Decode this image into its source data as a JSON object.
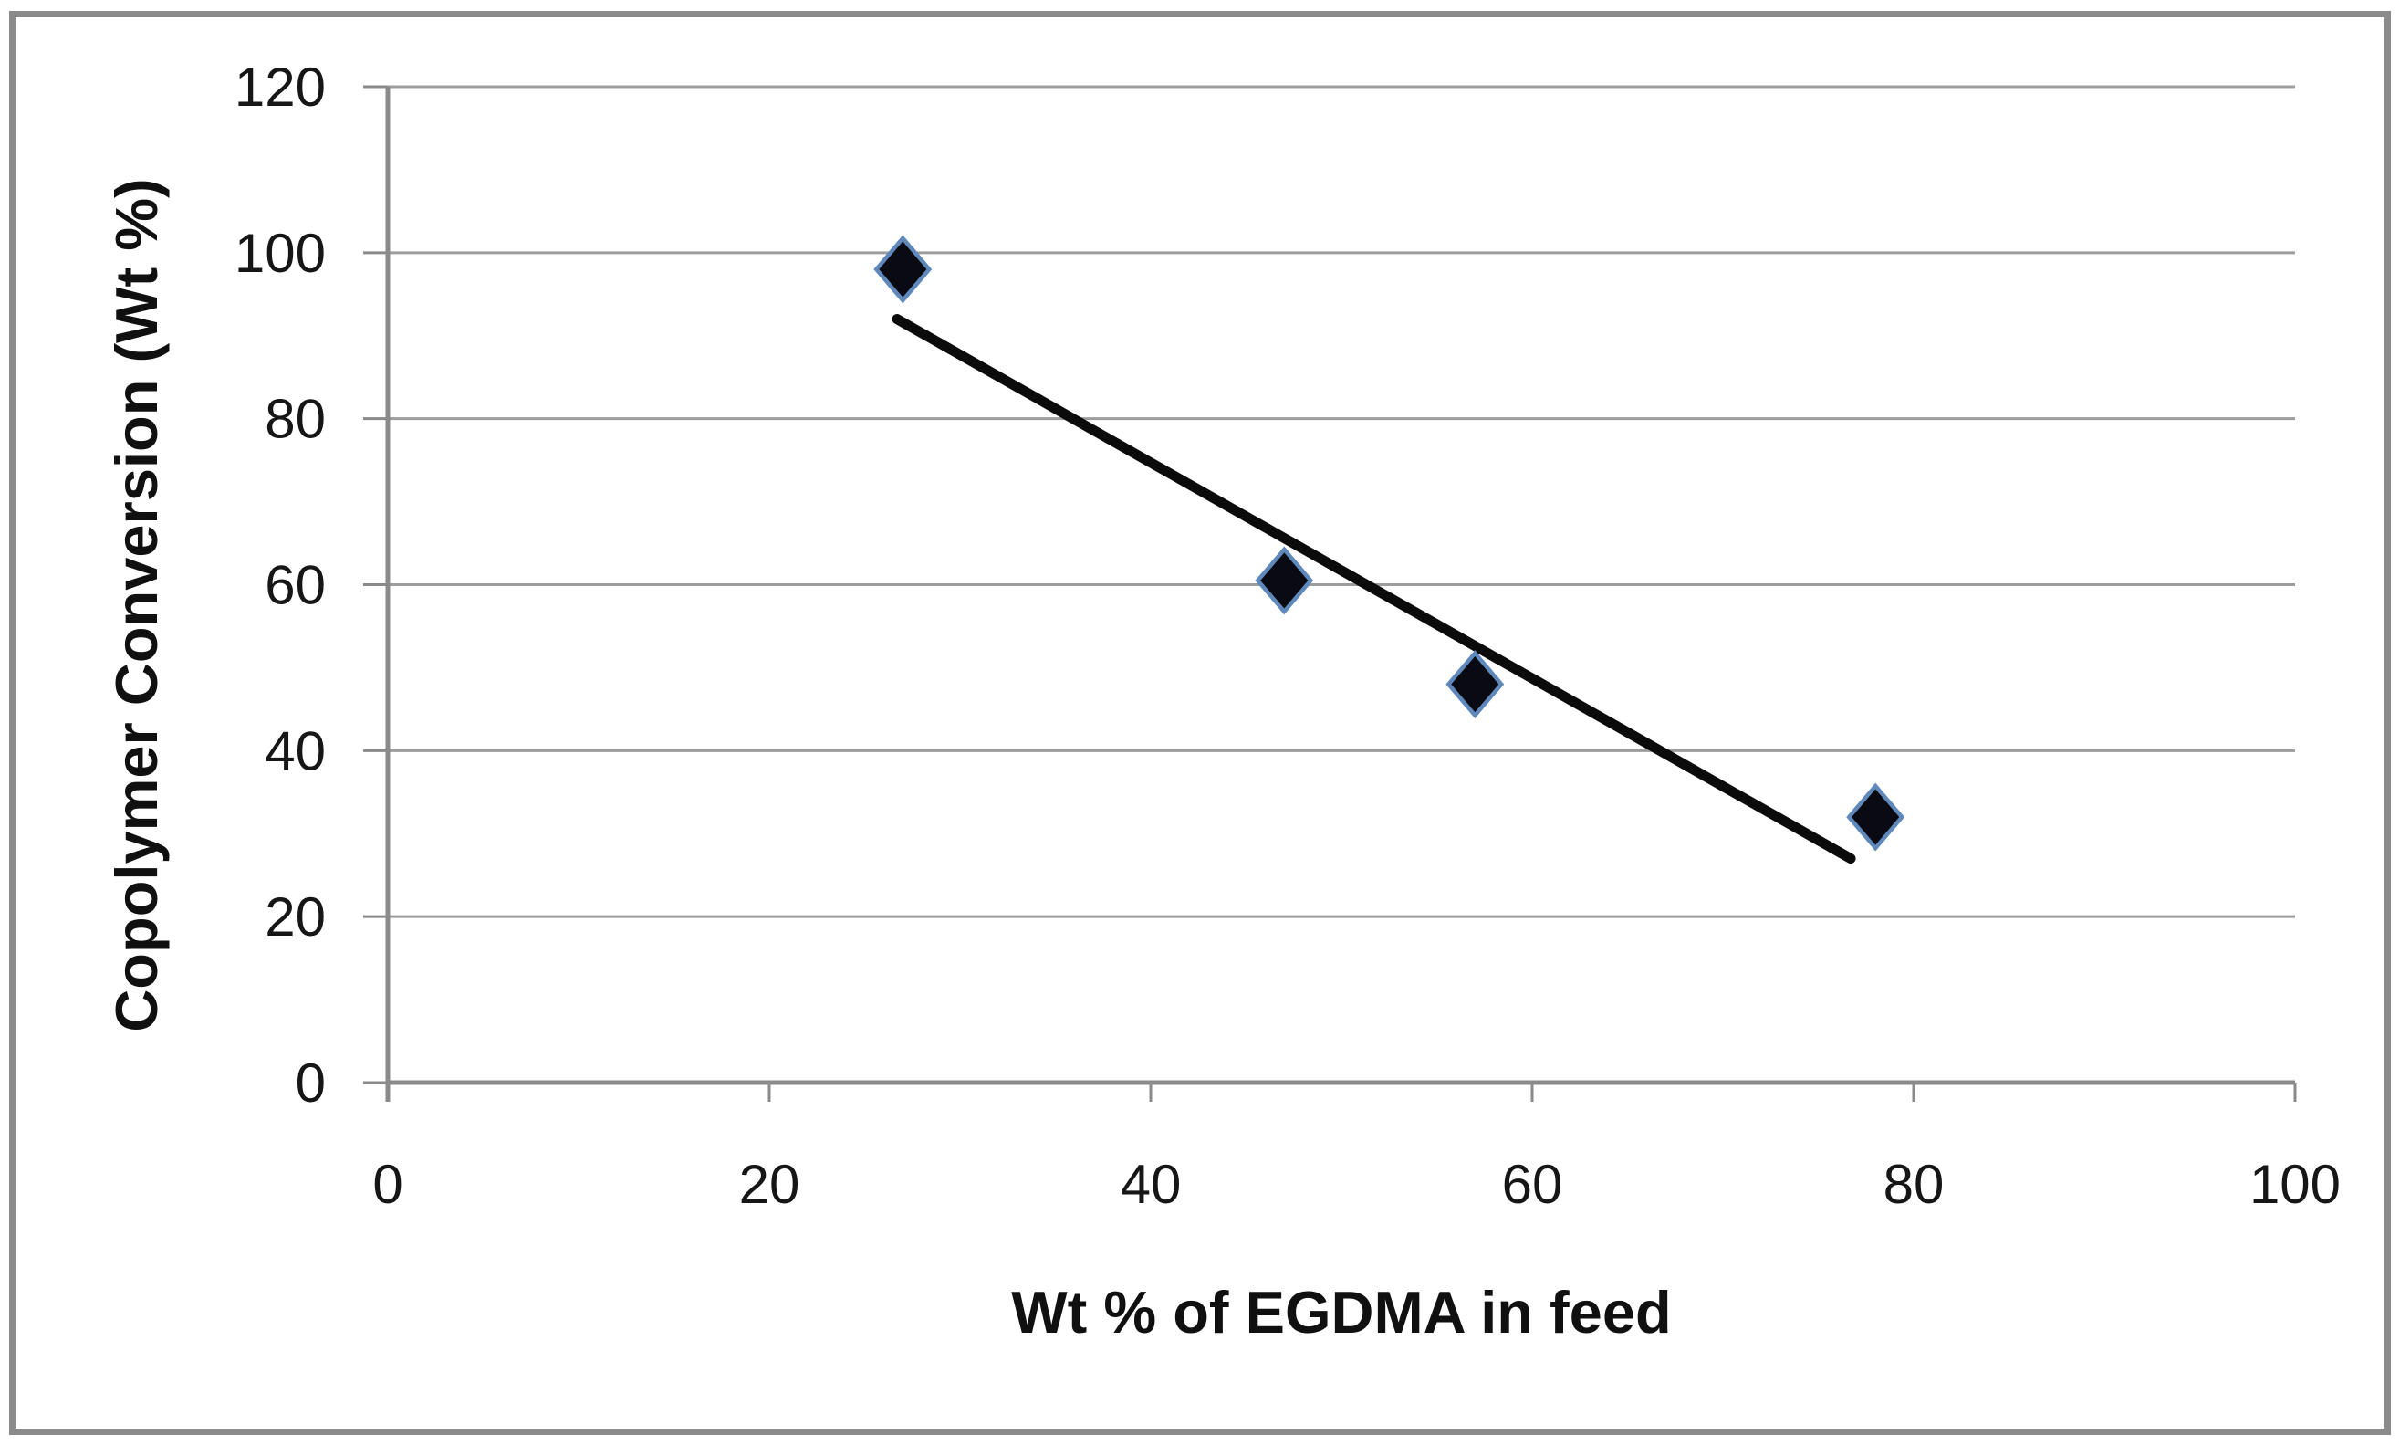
{
  "chart_data": {
    "type": "scatter",
    "title": "",
    "xlabel": "Wt % of EGDMA in feed",
    "ylabel": "Copolymer Conversion (Wt %)",
    "xlim": [
      0,
      100
    ],
    "ylim": [
      0,
      120
    ],
    "x_ticks": [
      0,
      20,
      40,
      60,
      80,
      100
    ],
    "y_ticks": [
      0,
      20,
      40,
      60,
      80,
      100,
      120
    ],
    "grid": "horizontal",
    "legend": "none",
    "series": [
      {
        "name": "copolymer-conversion-points",
        "marker": "diamond",
        "points": [
          {
            "x": 27,
            "y": 98
          },
          {
            "x": 47,
            "y": 60.5
          },
          {
            "x": 57,
            "y": 48
          },
          {
            "x": 78,
            "y": 32
          }
        ]
      }
    ],
    "trendline": {
      "x1": 26.7,
      "y1": 92,
      "x2": 76.7,
      "y2": 27
    }
  },
  "colors": {
    "background": "#ffffff",
    "frame_border": "#8b8b8b",
    "gridline": "#9d9d9d",
    "axis": "#8a8a8a",
    "tick": "#8a8a8a",
    "text": "#161616",
    "marker_fill": "#0a0a12",
    "marker_stroke": "#5f88bb",
    "trendline": "#0b0b0b"
  }
}
